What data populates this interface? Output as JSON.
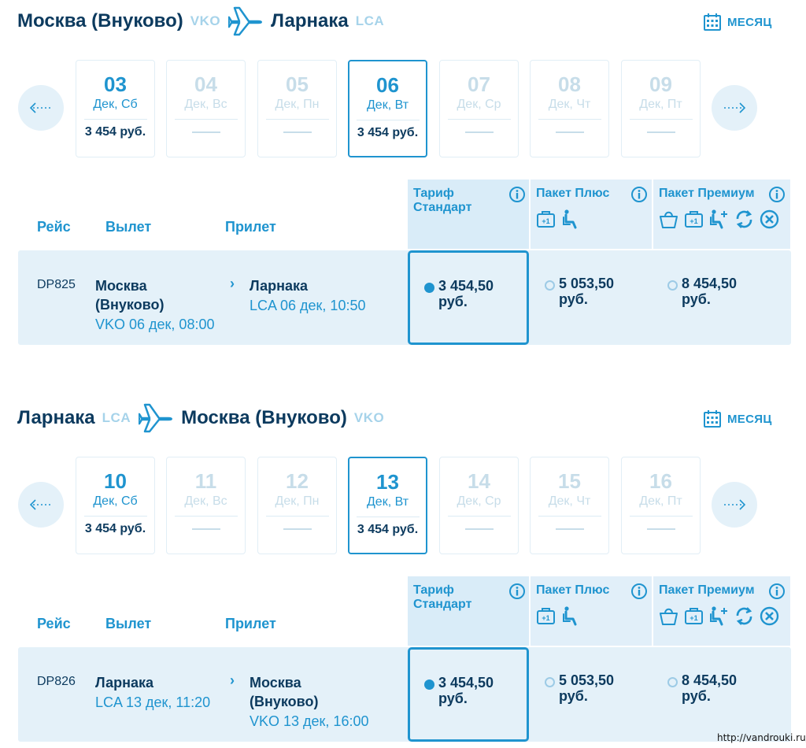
{
  "outbound": {
    "from_city": "Москва (Внуково)",
    "from_code": "VKO",
    "to_city": "Ларнака",
    "to_code": "LCA",
    "month_label": "МЕСЯЦ",
    "days": [
      {
        "num": "03",
        "sub": "Дек, Сб",
        "price": "3 454 руб.",
        "priced": true,
        "selected": false
      },
      {
        "num": "04",
        "sub": "Дек, Вс",
        "price": "",
        "priced": false,
        "selected": false
      },
      {
        "num": "05",
        "sub": "Дек, Пн",
        "price": "",
        "priced": false,
        "selected": false
      },
      {
        "num": "06",
        "sub": "Дек, Вт",
        "price": "3 454 руб.",
        "priced": true,
        "selected": true
      },
      {
        "num": "07",
        "sub": "Дек, Ср",
        "price": "",
        "priced": false,
        "selected": false
      },
      {
        "num": "08",
        "sub": "Дек, Чт",
        "price": "",
        "priced": false,
        "selected": false
      },
      {
        "num": "09",
        "sub": "Дек, Пт",
        "price": "",
        "priced": false,
        "selected": false
      }
    ],
    "columns": {
      "flight": "Рейс",
      "departure": "Вылет",
      "arrival": "Прилет"
    },
    "fares": {
      "standard_title": "Тариф Стандарт",
      "plus_title": "Пакет Плюс",
      "premium_title": "Пакет Премиум"
    },
    "flight": {
      "number": "DP825",
      "dep_city_line1": "Москва",
      "dep_city_line2": "(Внуково)",
      "dep_time": "VKO 06 дек, 08:00",
      "arr_city": "Ларнака",
      "arr_time": "LCA 06 дек, 10:50",
      "price_standard_1": "3 454,50",
      "price_standard_2": "руб.",
      "price_plus_1": "5 053,50",
      "price_plus_2": "руб.",
      "price_premium_1": "8 454,50",
      "price_premium_2": "руб."
    }
  },
  "return": {
    "from_city": "Ларнака",
    "from_code": "LCA",
    "to_city": "Москва (Внуково)",
    "to_code": "VKO",
    "month_label": "МЕСЯЦ",
    "days": [
      {
        "num": "10",
        "sub": "Дек, Сб",
        "price": "3 454 руб.",
        "priced": true,
        "selected": false
      },
      {
        "num": "11",
        "sub": "Дек, Вс",
        "price": "",
        "priced": false,
        "selected": false
      },
      {
        "num": "12",
        "sub": "Дек, Пн",
        "price": "",
        "priced": false,
        "selected": false
      },
      {
        "num": "13",
        "sub": "Дек, Вт",
        "price": "3 454 руб.",
        "priced": true,
        "selected": true
      },
      {
        "num": "14",
        "sub": "Дек, Ср",
        "price": "",
        "priced": false,
        "selected": false
      },
      {
        "num": "15",
        "sub": "Дек, Чт",
        "price": "",
        "priced": false,
        "selected": false
      },
      {
        "num": "16",
        "sub": "Дек, Пт",
        "price": "",
        "priced": false,
        "selected": false
      }
    ],
    "columns": {
      "flight": "Рейс",
      "departure": "Вылет",
      "arrival": "Прилет"
    },
    "fares": {
      "standard_title": "Тариф Стандарт",
      "plus_title": "Пакет Плюс",
      "premium_title": "Пакет Премиум"
    },
    "flight": {
      "number": "DP826",
      "dep_city_line1": "Ларнака",
      "dep_time": "LCA 13 дек, 11:20",
      "arr_city_line1": "Москва",
      "arr_city_line2": "(Внуково)",
      "arr_time": "VKO 13 дек, 16:00",
      "price_standard_1": "3 454,50",
      "price_standard_2": "руб.",
      "price_plus_1": "5 053,50",
      "price_plus_2": "руб.",
      "price_premium_1": "8 454,50",
      "price_premium_2": "руб."
    }
  },
  "colors": {
    "accent": "#1f94cf",
    "dark": "#0c3a5e",
    "light_bg": "#e4f1f9",
    "muted": "#c7dde9"
  },
  "icons": [
    "airplane-icon",
    "calendar-icon",
    "arrow-left-icon",
    "arrow-right-icon",
    "info-icon",
    "luggage-plus-icon",
    "seat-icon",
    "bag-icon",
    "exchange-icon",
    "cancel-icon"
  ],
  "watermark": "http://vandrouki.ru/"
}
